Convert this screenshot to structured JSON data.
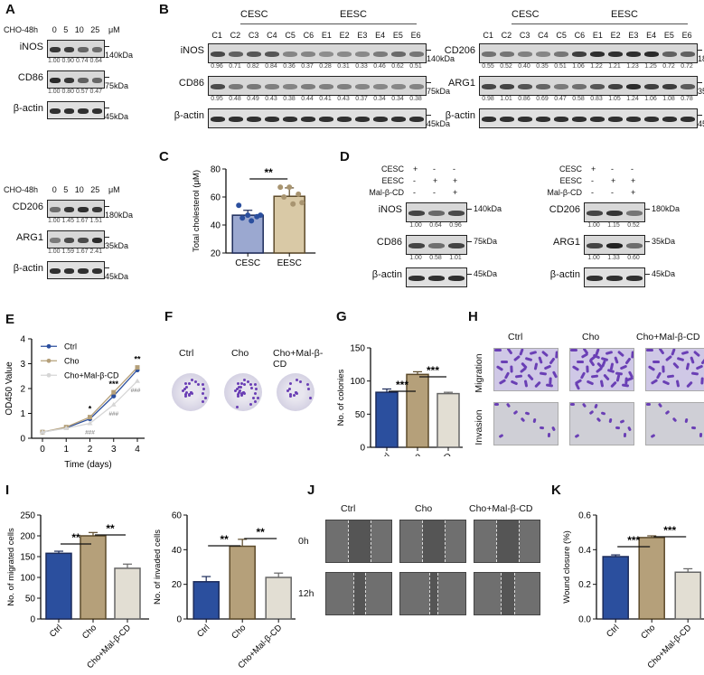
{
  "panels": {
    "A": {
      "label": "A",
      "top": {
        "treatment": "CHO-48h",
        "doses": [
          "0",
          "5",
          "10",
          "25"
        ],
        "unit": "μM",
        "rows": [
          {
            "protein": "iNOS",
            "kda": "140kDa",
            "quant": [
              "1.00",
              "0.90",
              "0.74",
              "0.64"
            ],
            "intensity": [
              0.85,
              0.8,
              0.5,
              0.45
            ]
          },
          {
            "protein": "CD86",
            "kda": "75kDa",
            "quant": [
              "1.00",
              "0.80",
              "0.57",
              "0.47"
            ],
            "intensity": [
              0.95,
              0.85,
              0.55,
              0.5
            ]
          },
          {
            "protein": "β-actin",
            "kda": "45kDa",
            "quant": [],
            "intensity": [
              0.9,
              0.9,
              0.9,
              0.9
            ]
          }
        ]
      },
      "bottom": {
        "treatment": "CHO-48h",
        "doses": [
          "0",
          "5",
          "10",
          "25"
        ],
        "unit": "μM",
        "rows": [
          {
            "protein": "CD206",
            "kda": "180kDa",
            "quant": [
              "1.00",
              "1.45",
              "1.67",
              "1.51"
            ],
            "intensity": [
              0.45,
              0.85,
              0.9,
              0.85
            ]
          },
          {
            "protein": "ARG1",
            "kda": "35kDa",
            "quant": [
              "1.00",
              "1.59",
              "1.67",
              "2.41"
            ],
            "intensity": [
              0.35,
              0.7,
              0.7,
              0.95
            ]
          },
          {
            "protein": "β-actin",
            "kda": "45kDa",
            "quant": [],
            "intensity": [
              0.9,
              0.9,
              0.9,
              0.9
            ]
          }
        ]
      }
    },
    "B": {
      "label": "B",
      "groups": [
        "CESC",
        "EESC"
      ],
      "lanes": [
        "C1",
        "C2",
        "C3",
        "C4",
        "C5",
        "C6",
        "E1",
        "E2",
        "E3",
        "E4",
        "E5",
        "E6"
      ],
      "left": {
        "rows": [
          {
            "protein": "iNOS",
            "kda": "140kDa",
            "quant": [
              "0.96",
              "0.71",
              "0.82",
              "0.84",
              "0.36",
              "0.37",
              "0.28",
              "0.31",
              "0.33",
              "0.46",
              "0.62",
              "0.51"
            ]
          },
          {
            "protein": "CD86",
            "kda": "75kDa",
            "quant": [
              "0.95",
              "0.48",
              "0.49",
              "0.43",
              "0.38",
              "0.44",
              "0.41",
              "0.43",
              "0.37",
              "0.34",
              "0.34",
              "0.38"
            ]
          },
          {
            "protein": "β-actin",
            "kda": "45kDa",
            "quant": []
          }
        ]
      },
      "right": {
        "rows": [
          {
            "protein": "CD206",
            "kda": "180kDa",
            "quant": [
              "0.55",
              "0.52",
              "0.40",
              "0.35",
              "0.51",
              "1.06",
              "1.22",
              "1.21",
              "1.23",
              "1.25",
              "0.72",
              "0.72"
            ]
          },
          {
            "protein": "ARG1",
            "kda": "35kDa",
            "quant": [
              "0.98",
              "1.01",
              "0.86",
              "0.69",
              "0.47",
              "0.58",
              "0.83",
              "1.05",
              "1.24",
              "1.06",
              "1.08",
              "0.78"
            ]
          },
          {
            "protein": "β-actin",
            "kda": "45kDa",
            "quant": []
          }
        ]
      }
    },
    "C": {
      "label": "C",
      "significance": "**"
    },
    "D": {
      "label": "D",
      "conditions": [
        {
          "name": "CESC",
          "signs": [
            "+",
            "-",
            "-"
          ]
        },
        {
          "name": "EESC",
          "signs": [
            "-",
            "+",
            "+"
          ]
        },
        {
          "name": "Mal-β-CD",
          "signs": [
            "-",
            "-",
            "+"
          ]
        }
      ],
      "left": {
        "rows": [
          {
            "protein": "iNOS",
            "kda": "140kDa",
            "quant": [
              "1.00",
              "0.64",
              "0.96"
            ]
          },
          {
            "protein": "CD86",
            "kda": "75kDa",
            "quant": [
              "1.00",
              "0.58",
              "1.01"
            ]
          },
          {
            "protein": "β-actin",
            "kda": "45kDa",
            "quant": []
          }
        ]
      },
      "right": {
        "rows": [
          {
            "protein": "CD206",
            "kda": "180kDa",
            "quant": [
              "1.00",
              "1.15",
              "0.52"
            ]
          },
          {
            "protein": "ARG1",
            "kda": "35kDa",
            "quant": [
              "1.00",
              "1.33",
              "0.60"
            ]
          },
          {
            "protein": "β-actin",
            "kda": "45kDa",
            "quant": []
          }
        ]
      }
    },
    "E": {
      "label": "E"
    },
    "F": {
      "label": "F",
      "groups": [
        "Ctrl",
        "Cho",
        "Cho+Mal-β-CD"
      ]
    },
    "G": {
      "label": "G"
    },
    "H": {
      "label": "H",
      "groups": [
        "Ctrl",
        "Cho",
        "Cho+Mal-β-CD"
      ],
      "rows": [
        "Migration",
        "Invasion"
      ]
    },
    "I": {
      "label": "I"
    },
    "J": {
      "label": "J",
      "groups": [
        "Ctrl",
        "Cho",
        "Cho+Mal-β-CD"
      ],
      "rows": [
        "0h",
        "12h"
      ]
    },
    "K": {
      "label": "K"
    }
  },
  "colors": {
    "ctrl": "#2b4f9e",
    "cho": "#b5a07a",
    "cho_mal": "#e2ded3",
    "cesc": "#9ba8d0",
    "eesc": "#d9c9a6",
    "crystal_violet": "#6a3fb5"
  },
  "chart_data": [
    {
      "panel": "C",
      "type": "bar",
      "categories": [
        "CESC",
        "EESC"
      ],
      "values": [
        47,
        60.5
      ],
      "errors": [
        3.5,
        6
      ],
      "points": [
        [
          54,
          47,
          46,
          45,
          43,
          47
        ],
        [
          67,
          67,
          62,
          60,
          55,
          56
        ]
      ],
      "ylabel": "Total cholesterol (μM)",
      "ylim": [
        20,
        80
      ],
      "yticks": [
        20,
        40,
        60,
        80
      ],
      "annotations": [
        {
          "between": [
            "CESC",
            "EESC"
          ],
          "text": "**"
        }
      ]
    },
    {
      "panel": "E",
      "type": "line",
      "x": [
        0,
        1,
        2,
        3,
        4
      ],
      "xlabel": "Time (days)",
      "ylabel": "OD450 Value",
      "ylim": [
        0,
        4
      ],
      "yticks": [
        0,
        1,
        2,
        3,
        4
      ],
      "series": [
        {
          "name": "Ctrl",
          "values": [
            0.25,
            0.42,
            0.78,
            1.7,
            2.75
          ]
        },
        {
          "name": "Cho",
          "values": [
            0.25,
            0.45,
            0.85,
            1.85,
            2.85
          ]
        },
        {
          "name": "Cho+Mal-β-CD",
          "values": [
            0.25,
            0.4,
            0.6,
            1.35,
            2.3
          ]
        }
      ],
      "annotations": [
        {
          "x": 2,
          "text": "*"
        },
        {
          "x": 3,
          "text": "***"
        },
        {
          "x": 4,
          "text": "**"
        },
        {
          "x": 2,
          "text": "###"
        },
        {
          "x": 3,
          "text": "###"
        },
        {
          "x": 4,
          "text": "###"
        }
      ],
      "legend_position": "top-left"
    },
    {
      "panel": "G",
      "type": "bar",
      "categories": [
        "Ctrl",
        "Cho",
        "Cho+Mal-β-CD"
      ],
      "values": [
        83,
        110,
        81
      ],
      "errors": [
        5,
        4,
        2
      ],
      "ylabel": "No. of colonies",
      "ylim": [
        0,
        150
      ],
      "yticks": [
        0,
        50,
        100,
        150
      ],
      "annotations": [
        {
          "between": [
            "Ctrl",
            "Cho"
          ],
          "text": "***"
        },
        {
          "between": [
            "Cho",
            "Cho+Mal-β-CD"
          ],
          "text": "***"
        }
      ]
    },
    {
      "panel": "I-left",
      "type": "bar",
      "categories": [
        "Ctrl",
        "Cho",
        "Cho+Mal-β-CD"
      ],
      "values": [
        158,
        200,
        122
      ],
      "errors": [
        5,
        8,
        10
      ],
      "ylabel": "No. of migrated cells",
      "ylim": [
        0,
        250
      ],
      "yticks": [
        0,
        50,
        100,
        150,
        200,
        250
      ],
      "annotations": [
        {
          "between": [
            "Ctrl",
            "Cho"
          ],
          "text": "**"
        },
        {
          "between": [
            "Cho",
            "Cho+Mal-β-CD"
          ],
          "text": "**"
        }
      ]
    },
    {
      "panel": "I-right",
      "type": "bar",
      "categories": [
        "Ctrl",
        "Cho",
        "Cho+Mal-β-CD"
      ],
      "values": [
        21.5,
        42,
        24
      ],
      "errors": [
        3,
        4,
        2.5
      ],
      "ylabel": "No. of invaded cells",
      "ylim": [
        0,
        60
      ],
      "yticks": [
        0,
        20,
        40,
        60
      ],
      "annotations": [
        {
          "between": [
            "Ctrl",
            "Cho"
          ],
          "text": "**"
        },
        {
          "between": [
            "Cho",
            "Cho+Mal-β-CD"
          ],
          "text": "**"
        }
      ]
    },
    {
      "panel": "K",
      "type": "bar",
      "categories": [
        "Ctrl",
        "Cho",
        "Cho+Mal-β-CD"
      ],
      "values": [
        0.36,
        0.47,
        0.27
      ],
      "errors": [
        0.01,
        0.01,
        0.02
      ],
      "ylabel": "Wound closure (%)",
      "ylim": [
        0,
        0.6
      ],
      "yticks": [
        "0.0",
        "0.2",
        "0.4",
        "0.6"
      ],
      "annotations": [
        {
          "between": [
            "Ctrl",
            "Cho"
          ],
          "text": "***"
        },
        {
          "between": [
            "Cho",
            "Cho+Mal-β-CD"
          ],
          "text": "***"
        }
      ]
    }
  ]
}
